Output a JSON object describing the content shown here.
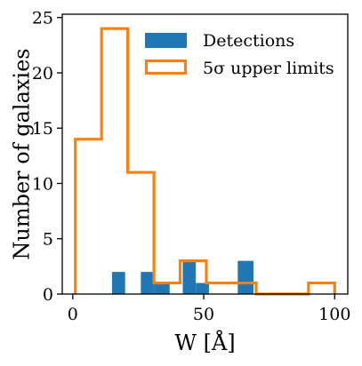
{
  "chart_data": {
    "type": "bar",
    "xlabel": "W [Å]",
    "ylabel": "Number of galaxies",
    "xlim": [
      -4,
      105
    ],
    "ylim": [
      0,
      25.3
    ],
    "xticks": [
      0,
      50,
      100
    ],
    "yticks": [
      0,
      5,
      10,
      15,
      20,
      25
    ],
    "legend_position": "top-right",
    "series": [
      {
        "name": "Detections",
        "style": "filled-histogram",
        "color": "#1f77b4",
        "bins": [
          {
            "x0": 15,
            "x1": 20,
            "count": 2
          },
          {
            "x0": 26,
            "x1": 31,
            "count": 2
          },
          {
            "x0": 31,
            "x1": 37,
            "count": 1
          },
          {
            "x0": 42,
            "x1": 47,
            "count": 3
          },
          {
            "x0": 47,
            "x1": 52,
            "count": 1
          },
          {
            "x0": 63,
            "x1": 69,
            "count": 3
          }
        ]
      },
      {
        "name": "5σ upper limits",
        "style": "step-histogram",
        "color": "#ff7f0e",
        "bins": [
          {
            "x0": 1,
            "x1": 11,
            "count": 14
          },
          {
            "x0": 11,
            "x1": 21,
            "count": 24
          },
          {
            "x0": 21,
            "x1": 31,
            "count": 11
          },
          {
            "x0": 31,
            "x1": 41,
            "count": 1
          },
          {
            "x0": 41,
            "x1": 51,
            "count": 3
          },
          {
            "x0": 51,
            "x1": 61,
            "count": 1
          },
          {
            "x0": 61,
            "x1": 70,
            "count": 1
          },
          {
            "x0": 70,
            "x1": 80,
            "count": 0
          },
          {
            "x0": 80,
            "x1": 90,
            "count": 0
          },
          {
            "x0": 90,
            "x1": 100,
            "count": 1
          }
        ]
      }
    ]
  }
}
